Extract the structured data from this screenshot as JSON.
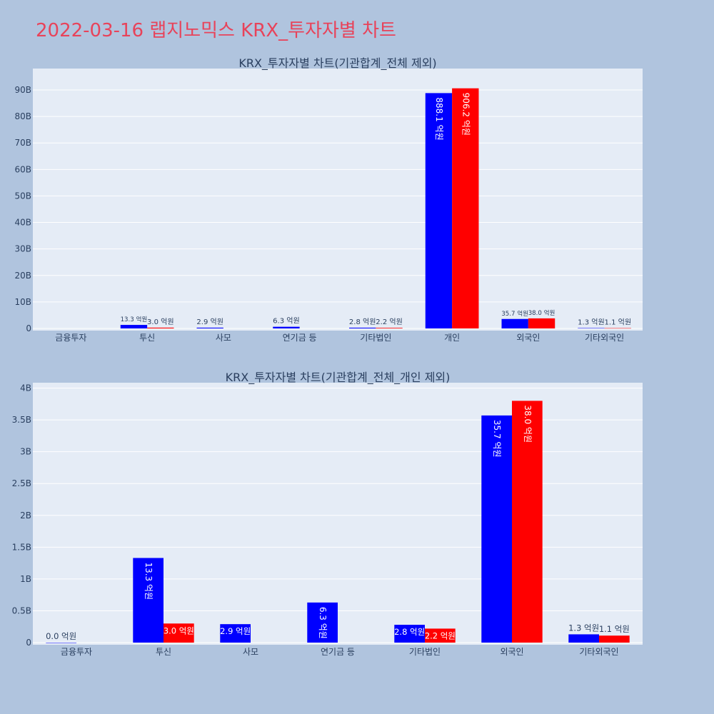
{
  "page_title": "2022-03-16 랩지노믹스 KRX_투자자별 차트",
  "colors": {
    "series_a": "#0000ff",
    "series_b": "#ff0000",
    "background": "#b0c4de",
    "plot_bg": "#e5ecf6",
    "title": "#e8435a"
  },
  "chart_data": [
    {
      "type": "bar",
      "title": "KRX_투자자별 차트(기관합계_전체 제외)",
      "categories": [
        "금융투자",
        "투신",
        "사모",
        "연기금 등",
        "기타법인",
        "개인",
        "외국인",
        "기타외국인"
      ],
      "series": [
        {
          "color": "#0000ff",
          "values": [
            null,
            1.33,
            0.29,
            0.63,
            0.28,
            88.81,
            3.57,
            0.13
          ],
          "labels": [
            "",
            "13.3 억원",
            "2.9 억원",
            "6.3 억원",
            "2.8 억원",
            "888.1 억원",
            "35.7 억원",
            "1.3 억원"
          ]
        },
        {
          "color": "#ff0000",
          "values": [
            null,
            0.3,
            null,
            null,
            0.22,
            90.62,
            3.8,
            0.11
          ],
          "labels": [
            "",
            "3.0 억원",
            "",
            "",
            "2.2 억원",
            "906.2 억원",
            "38.0 억원",
            "1.1 억원"
          ]
        }
      ],
      "yticks": [
        "0",
        "10B",
        "20B",
        "30B",
        "40B",
        "50B",
        "60B",
        "70B",
        "80B",
        "90B"
      ],
      "ylim": [
        0,
        97
      ],
      "grid": true
    },
    {
      "type": "bar",
      "title": "KRX_투자자별 차트(기관합계_전체_개인 제외)",
      "categories": [
        "금융투자",
        "투신",
        "사모",
        "연기금 등",
        "기타법인",
        "외국인",
        "기타외국인"
      ],
      "series": [
        {
          "color": "#0000ff",
          "values": [
            0.0,
            1.33,
            0.29,
            0.63,
            0.28,
            3.57,
            0.13
          ],
          "labels": [
            "0.0 억원",
            "13.3 억원",
            "2.9 억원",
            "6.3 억원",
            "2.8 억원",
            "35.7 억원",
            "1.3 억원"
          ]
        },
        {
          "color": "#ff0000",
          "values": [
            null,
            0.3,
            null,
            null,
            0.22,
            3.8,
            0.11
          ],
          "labels": [
            "",
            "3.0 억원",
            "",
            "",
            "2.2 억원",
            "38.0 억원",
            "1.1 억원"
          ]
        }
      ],
      "yticks": [
        "0",
        "0.5B",
        "1B",
        "1.5B",
        "2B",
        "2.5B",
        "3B",
        "3.5B",
        "4B"
      ],
      "ylim": [
        0,
        4.04
      ],
      "grid": true
    }
  ]
}
